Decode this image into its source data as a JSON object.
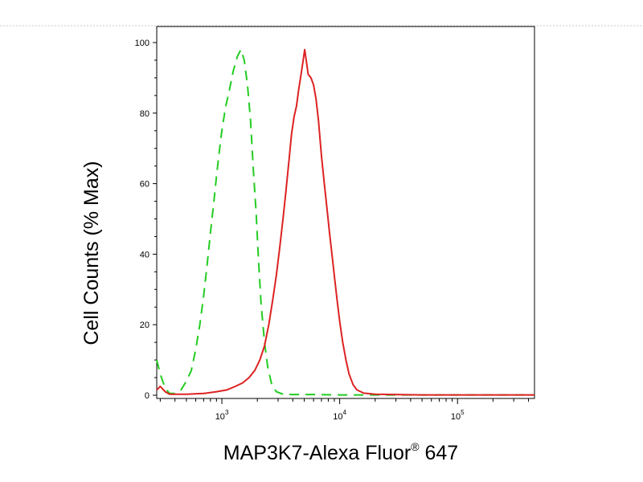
{
  "chart_data": {
    "type": "line",
    "title": "",
    "xlabel": "MAP3K7-Alexa Fluor",
    "xlabel_superscript": "®",
    "xlabel_suffix": " 647",
    "ylabel": "Cell Counts (% Max)",
    "x_scale": "log",
    "xlim": [
      280,
      450000
    ],
    "ylim": [
      0,
      100
    ],
    "grid": false,
    "legend": "none",
    "y_ticks": [
      {
        "value": 0,
        "label": "0"
      },
      {
        "value": 20,
        "label": "20"
      },
      {
        "value": 40,
        "label": "40"
      },
      {
        "value": 60,
        "label": "60"
      },
      {
        "value": 80,
        "label": "80"
      },
      {
        "value": 100,
        "label": "100"
      }
    ],
    "x_ticks": [
      {
        "value": 1000,
        "base": "10",
        "exp": "3"
      },
      {
        "value": 10000,
        "base": "10",
        "exp": "4"
      },
      {
        "value": 100000,
        "base": "10",
        "exp": "5"
      }
    ],
    "series": [
      {
        "color": "#22cc22",
        "style": "dashed",
        "points": [
          [
            280,
            10
          ],
          [
            300,
            6
          ],
          [
            330,
            2
          ],
          [
            360,
            0.5
          ],
          [
            400,
            0.5
          ],
          [
            450,
            1.5
          ],
          [
            500,
            4
          ],
          [
            550,
            7
          ],
          [
            600,
            13
          ],
          [
            650,
            20
          ],
          [
            700,
            28
          ],
          [
            750,
            37
          ],
          [
            800,
            46
          ],
          [
            850,
            54
          ],
          [
            900,
            62
          ],
          [
            950,
            69
          ],
          [
            1000,
            75
          ],
          [
            1080,
            82
          ],
          [
            1150,
            86
          ],
          [
            1250,
            92
          ],
          [
            1350,
            96
          ],
          [
            1450,
            98
          ],
          [
            1550,
            95
          ],
          [
            1650,
            88
          ],
          [
            1750,
            78
          ],
          [
            1850,
            64
          ],
          [
            1950,
            52
          ],
          [
            2050,
            38
          ],
          [
            2150,
            26
          ],
          [
            2300,
            15
          ],
          [
            2450,
            8
          ],
          [
            2650,
            3
          ],
          [
            2900,
            1
          ],
          [
            3300,
            0.3
          ],
          [
            4000,
            0.2
          ],
          [
            6000,
            0.2
          ],
          [
            10000,
            0.1
          ],
          [
            450000,
            0.1
          ]
        ]
      },
      {
        "color": "#dd2222",
        "style": "solid",
        "points": [
          [
            280,
            1.5
          ],
          [
            300,
            2.5
          ],
          [
            330,
            1
          ],
          [
            360,
            0.3
          ],
          [
            500,
            0.3
          ],
          [
            700,
            0.5
          ],
          [
            900,
            1
          ],
          [
            1100,
            1.5
          ],
          [
            1300,
            2.5
          ],
          [
            1500,
            3.5
          ],
          [
            1700,
            5
          ],
          [
            1900,
            7
          ],
          [
            2100,
            10
          ],
          [
            2300,
            14
          ],
          [
            2500,
            20
          ],
          [
            2700,
            27
          ],
          [
            2900,
            34
          ],
          [
            3100,
            42
          ],
          [
            3300,
            50
          ],
          [
            3500,
            58
          ],
          [
            3700,
            66
          ],
          [
            3900,
            74
          ],
          [
            4100,
            79
          ],
          [
            4300,
            82
          ],
          [
            4500,
            87
          ],
          [
            4700,
            91
          ],
          [
            4900,
            95
          ],
          [
            5050,
            98
          ],
          [
            5200,
            95
          ],
          [
            5400,
            91
          ],
          [
            5700,
            90
          ],
          [
            6000,
            88
          ],
          [
            6300,
            84
          ],
          [
            6600,
            78
          ],
          [
            7000,
            68
          ],
          [
            7400,
            60
          ],
          [
            7800,
            53
          ],
          [
            8200,
            46
          ],
          [
            8600,
            40
          ],
          [
            9000,
            34
          ],
          [
            9500,
            27
          ],
          [
            10000,
            21
          ],
          [
            10600,
            15
          ],
          [
            11300,
            10
          ],
          [
            12000,
            6
          ],
          [
            13000,
            3
          ],
          [
            14000,
            1.5
          ],
          [
            16000,
            0.6
          ],
          [
            20000,
            0.3
          ],
          [
            30000,
            0.2
          ],
          [
            50000,
            0.1
          ],
          [
            100000,
            0.1
          ],
          [
            450000,
            0.1
          ]
        ]
      }
    ]
  }
}
